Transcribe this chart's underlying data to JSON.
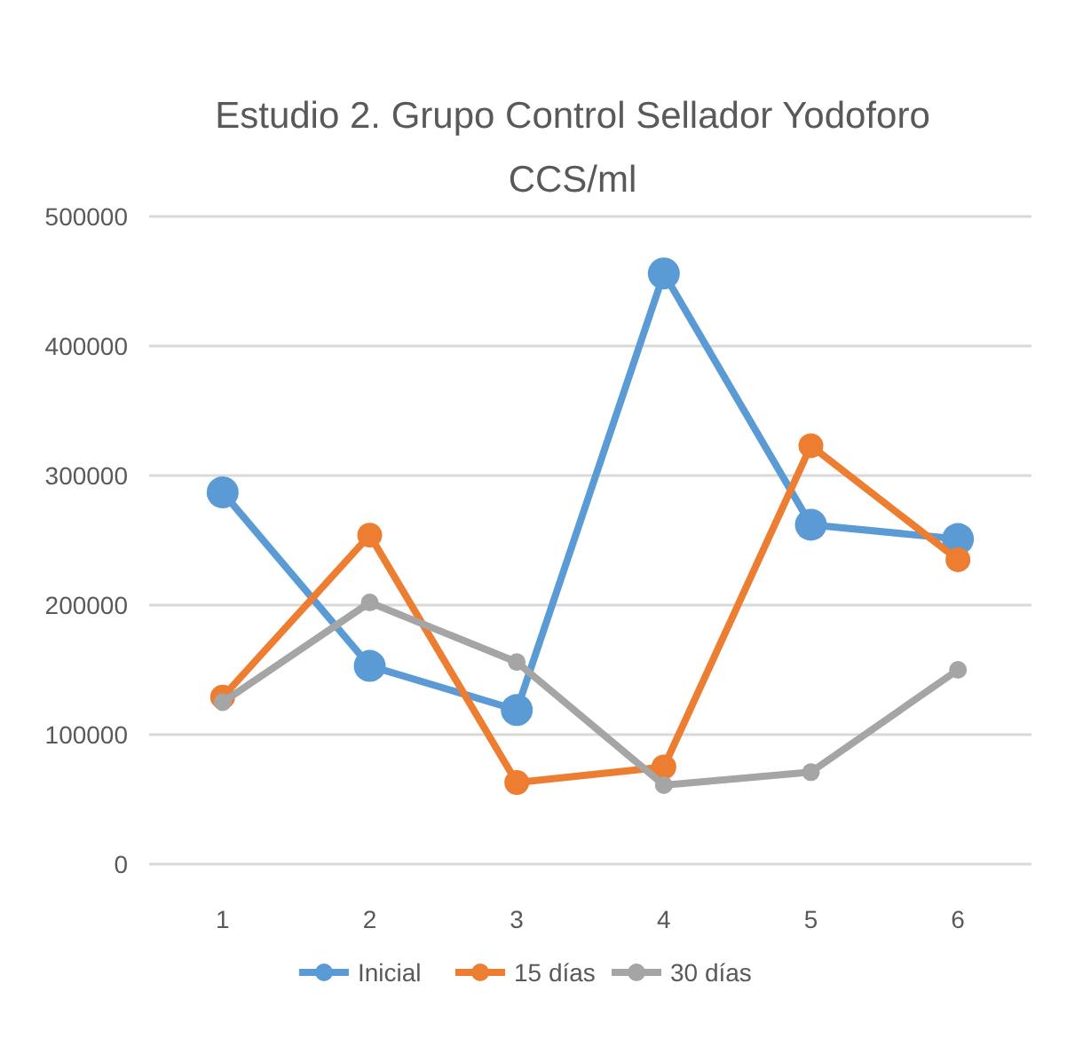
{
  "chart_data": {
    "type": "line",
    "title": "Estudio 2. Grupo Control Sellador Yodoforo",
    "subtitle": "CCS/ml",
    "categories": [
      "1",
      "2",
      "3",
      "4",
      "5",
      "6"
    ],
    "series": [
      {
        "name": "Inicial",
        "color": "#5b9bd5",
        "values": [
          287000,
          153000,
          119000,
          456000,
          262000,
          251000
        ]
      },
      {
        "name": "15 días",
        "color": "#ed7d31",
        "values": [
          129000,
          254000,
          63000,
          75000,
          323000,
          235000
        ]
      },
      {
        "name": "30 días",
        "color": "#a5a5a5",
        "values": [
          125000,
          202000,
          156000,
          61000,
          71000,
          150000
        ]
      }
    ],
    "ylim": [
      0,
      500000
    ],
    "yticks": [
      0,
      100000,
      200000,
      300000,
      400000,
      500000
    ],
    "grid": "y",
    "legend": "bottom",
    "marker": "circle",
    "line_style": "solid"
  }
}
